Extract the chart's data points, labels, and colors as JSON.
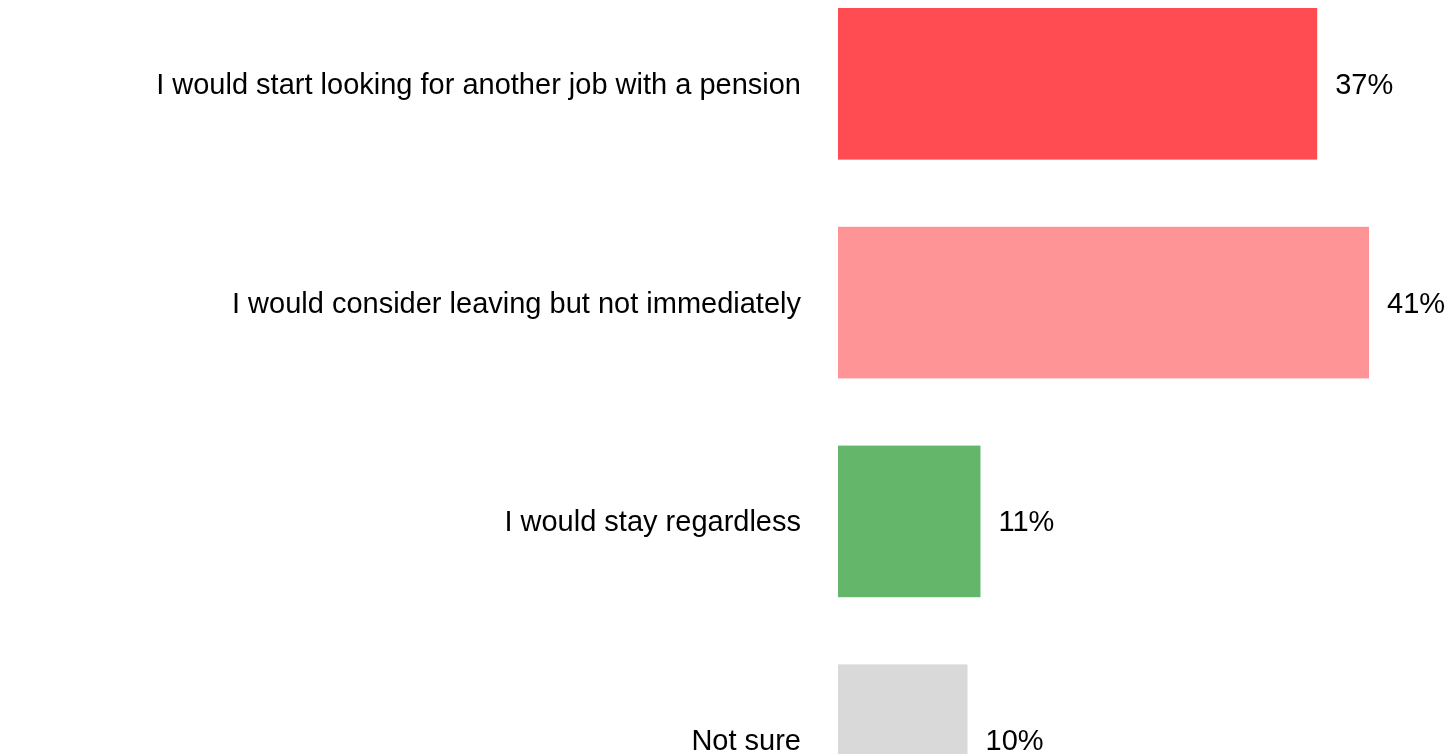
{
  "chart_data": {
    "type": "bar",
    "orientation": "horizontal",
    "categories": [
      "I would start looking for another job with a pension",
      "I would consider leaving but not immediately",
      "I would stay regardless",
      "Not sure"
    ],
    "values": [
      37,
      41,
      11,
      10
    ],
    "colors": [
      "#ff4b52",
      "#ff9496",
      "#64b76a",
      "#d9d9d9"
    ],
    "value_labels": [
      "37%",
      "41%",
      "11%",
      "10%"
    ],
    "grid": false
  }
}
